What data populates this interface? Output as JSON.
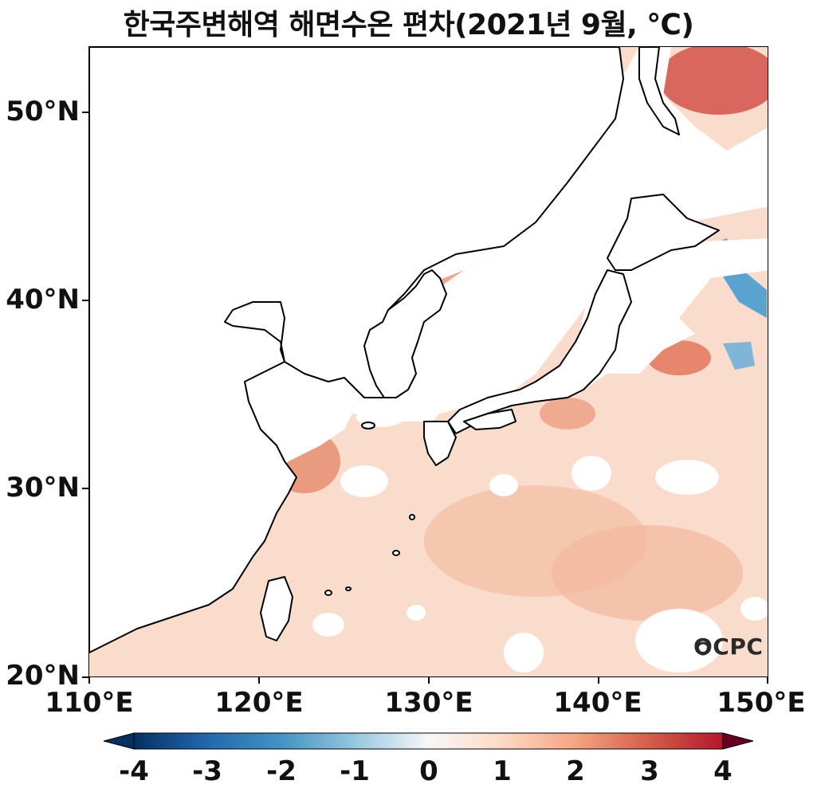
{
  "title": "한국주변해역 해면수온 편차(2021년 9월, ℃)",
  "y_ticks": [
    "20°N",
    "30°N",
    "40°N",
    "50°N"
  ],
  "x_ticks": [
    "110°E",
    "120°E",
    "130°E",
    "140°E",
    "150°E"
  ],
  "colorbar": {
    "ticks": [
      "-4",
      "-3",
      "-2",
      "-1",
      "0",
      "1",
      "2",
      "3",
      "4"
    ],
    "colors": [
      "#053061",
      "#2166ac",
      "#4393c3",
      "#92c5de",
      "#f7f7f7",
      "#fddbc7",
      "#f4a582",
      "#d6604d",
      "#b2182b",
      "#67001f"
    ]
  },
  "logo": "OCPC",
  "colors": {
    "land": "#ffffff",
    "coast": "#000000",
    "anom_1": "#f9dccb",
    "anom_1_5": "#f4b89c",
    "anom_2": "#ec9f82",
    "anom_3": "#c8444a",
    "anom_neg2": "#4a95c8"
  }
}
